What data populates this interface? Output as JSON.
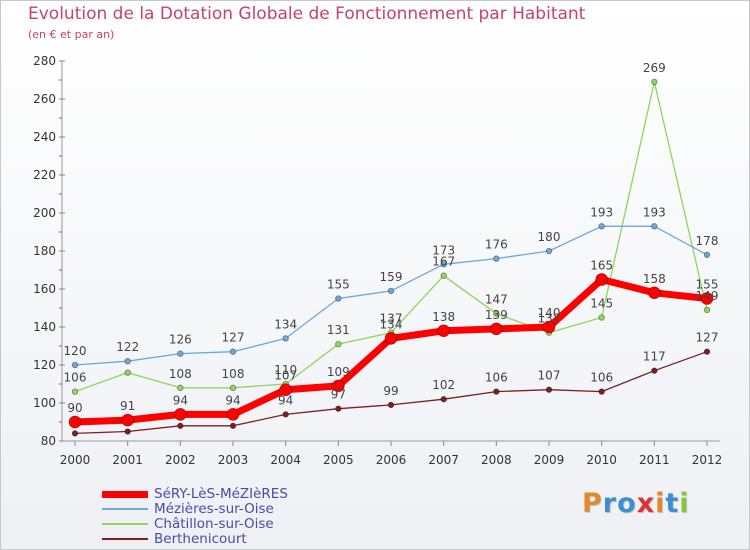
{
  "header": {
    "title": "Evolution de la Dotation Globale de Fonctionnement par Habitant",
    "subtitle": "(en € et par an)"
  },
  "brand": {
    "logo_text": "Proxiti",
    "letter_colors": [
      "#e08a2c",
      "#3b8fd1",
      "#3b8fd1",
      "#e03030",
      "#e08a2c",
      "#3b8fd1",
      "#8ac43f"
    ]
  },
  "chart_data": {
    "type": "line",
    "title": "Evolution de la Dotation Globale de Fonctionnement par Habitant",
    "subtitle": "(en € et par an)",
    "xlabel": "",
    "ylabel": "",
    "ylim": [
      80,
      280
    ],
    "yticks": [
      80,
      100,
      120,
      140,
      160,
      180,
      200,
      220,
      240,
      260,
      280
    ],
    "grid": false,
    "legend_position": "bottom-left",
    "categories": [
      "2000",
      "2001",
      "2002",
      "2003",
      "2004",
      "2005",
      "2006",
      "2007",
      "2008",
      "2009",
      "2010",
      "2011",
      "2012"
    ],
    "series": [
      {
        "name": "Berthenicourt",
        "color": "#7b1f22",
        "width": 1.3,
        "marker": 2.8,
        "values": [
          84,
          85,
          88,
          88,
          94,
          97,
          99,
          102,
          106,
          107,
          106,
          117,
          127
        ],
        "labels": [
          null,
          null,
          null,
          null,
          "94",
          "97",
          "99",
          "102",
          "106",
          "107",
          "106",
          "117",
          "127"
        ]
      },
      {
        "name": "Châtillon-sur-Oise",
        "color": "#8fd45c",
        "width": 1.3,
        "marker": 2.8,
        "values": [
          106,
          116,
          108,
          108,
          110,
          131,
          137,
          167,
          147,
          137,
          145,
          269,
          149
        ],
        "labels": [
          "106",
          null,
          "108",
          "108",
          "110",
          "131",
          "137",
          "167",
          "147",
          "137",
          "145",
          "269",
          "149"
        ]
      },
      {
        "name": "Mézières-sur-Oise",
        "color": "#6ea8d8",
        "width": 1.3,
        "marker": 2.8,
        "values": [
          120,
          122,
          126,
          127,
          134,
          155,
          159,
          173,
          176,
          180,
          193,
          193,
          178
        ],
        "labels": [
          "120",
          "122",
          "126",
          "127",
          "134",
          "155",
          "159",
          "173",
          "176",
          "180",
          "193",
          "193",
          "178"
        ]
      },
      {
        "name": "SéRY-LèS-MéZIèRES",
        "color": "#ff0000",
        "width": 7,
        "marker": 6,
        "values": [
          90,
          91,
          94,
          94,
          107,
          109,
          134,
          138,
          139,
          140,
          165,
          158,
          155
        ],
        "labels": [
          "90",
          "91",
          "94",
          "94",
          "107",
          "109",
          "134",
          "138",
          "139",
          "140",
          "165",
          "158",
          "155"
        ]
      }
    ]
  },
  "legend": {
    "items": [
      {
        "label": "SéRY-LèS-MéZIèRES",
        "color": "#ff0000",
        "thickness": 7
      },
      {
        "label": "Mézières-sur-Oise",
        "color": "#6ea8d8",
        "thickness": 2
      },
      {
        "label": "Châtillon-sur-Oise",
        "color": "#8fd45c",
        "thickness": 2
      },
      {
        "label": "Berthenicourt",
        "color": "#7b1f22",
        "thickness": 2
      }
    ]
  }
}
